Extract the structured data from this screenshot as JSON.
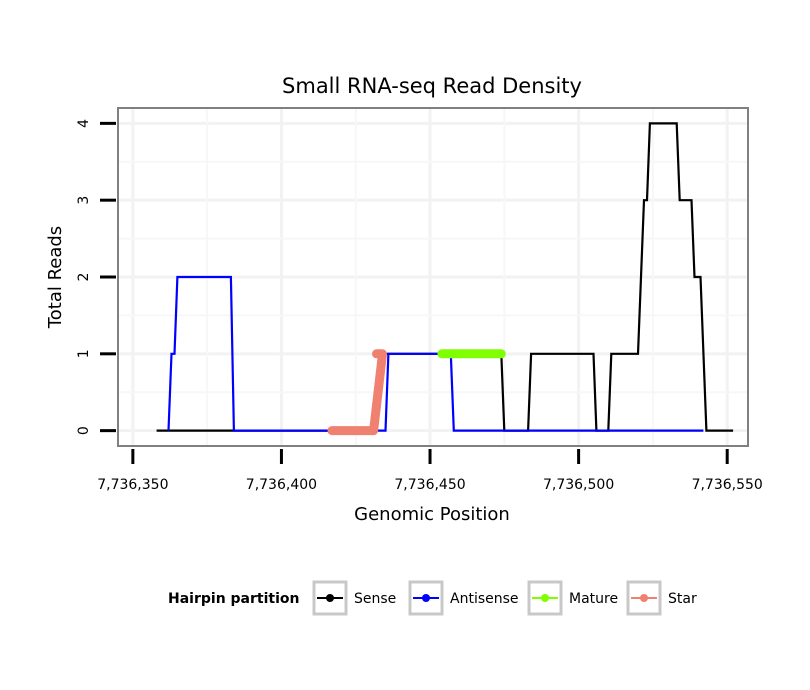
{
  "chart_data": {
    "type": "line",
    "title": "Small RNA-seq Read Density",
    "xlabel": "Genomic Position",
    "ylabel": "Total Reads",
    "xlim": [
      7736345,
      7736557
    ],
    "ylim": [
      -0.2,
      4.2
    ],
    "x_ticks": [
      7736350,
      7736400,
      7736450,
      7736500,
      7736550
    ],
    "x_tick_labels": [
      "7,736,350",
      "7,736,400",
      "7,736,450",
      "7,736,500",
      "7,736,550"
    ],
    "y_ticks": [
      0,
      1,
      2,
      3,
      4
    ],
    "y_tick_labels": [
      "0",
      "1",
      "2",
      "3",
      "4"
    ],
    "legend_title": "Hairpin partition",
    "legend_position": "bottom",
    "series": [
      {
        "name": "Sense",
        "color": "#000000",
        "points": [
          [
            7736358,
            0
          ],
          [
            7736432,
            0
          ],
          [
            7736433,
            1
          ],
          [
            7736474,
            1
          ],
          [
            7736475,
            0
          ],
          [
            7736483,
            0
          ],
          [
            7736484,
            1
          ],
          [
            7736505,
            1
          ],
          [
            7736506,
            0
          ],
          [
            7736510,
            0
          ],
          [
            7736511,
            1
          ],
          [
            7736520,
            1
          ],
          [
            7736522,
            3
          ],
          [
            7736523,
            3
          ],
          [
            7736524,
            4
          ],
          [
            7736533,
            4
          ],
          [
            7736534,
            3
          ],
          [
            7736538,
            3
          ],
          [
            7736539,
            2
          ],
          [
            7736541,
            2
          ],
          [
            7736543,
            0
          ],
          [
            7736552,
            0
          ]
        ]
      },
      {
        "name": "Antisense",
        "color": "#0000ff",
        "points": [
          [
            7736362,
            0
          ],
          [
            7736363,
            1
          ],
          [
            7736364,
            1
          ],
          [
            7736365,
            2
          ],
          [
            7736383,
            2
          ],
          [
            7736384,
            0
          ],
          [
            7736435,
            0
          ],
          [
            7736436,
            1
          ],
          [
            7736457,
            1
          ],
          [
            7736458,
            0
          ],
          [
            7736542,
            0
          ]
        ]
      },
      {
        "name": "Mature",
        "color": "#7fff00",
        "points": [
          [
            7736454,
            1
          ],
          [
            7736474,
            1
          ]
        ]
      },
      {
        "name": "Star",
        "color": "#f08070",
        "points": [
          [
            7736432,
            1
          ],
          [
            7736434,
            1
          ],
          [
            7736434,
            1
          ],
          [
            7736431,
            0
          ],
          [
            7736417,
            0
          ]
        ]
      }
    ]
  }
}
